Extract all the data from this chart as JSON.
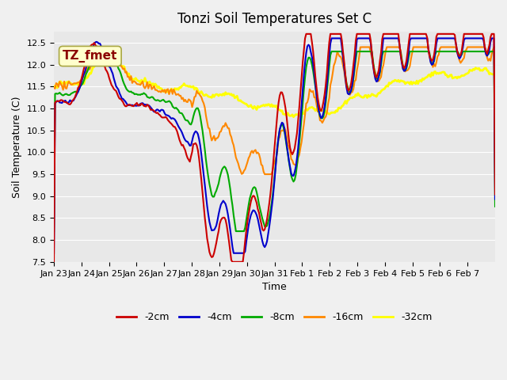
{
  "title": "Tonzi Soil Temperatures Set C",
  "xlabel": "Time",
  "ylabel": "Soil Temperature (C)",
  "ylim": [
    7.5,
    12.75
  ],
  "yticks": [
    7.5,
    8.0,
    8.5,
    9.0,
    9.5,
    10.0,
    10.5,
    11.0,
    11.5,
    12.0,
    12.5
  ],
  "annotation": "TZ_fmet",
  "series": {
    "-2cm": {
      "color": "#cc0000",
      "lw": 1.5
    },
    "-4cm": {
      "color": "#0000cc",
      "lw": 1.5
    },
    "-8cm": {
      "color": "#00aa00",
      "lw": 1.5
    },
    "-16cm": {
      "color": "#ff8800",
      "lw": 1.5
    },
    "-32cm": {
      "color": "#ffff00",
      "lw": 2.0
    }
  },
  "x_tick_labels": [
    "Jan 23",
    "Jan 24",
    "Jan 25",
    "Jan 26",
    "Jan 27",
    "Jan 28",
    "Jan 29",
    "Jan 30",
    "Jan 31",
    "Feb 1",
    "Feb 2",
    "Feb 3",
    "Feb 4",
    "Feb 5",
    "Feb 6",
    "Feb 7"
  ]
}
